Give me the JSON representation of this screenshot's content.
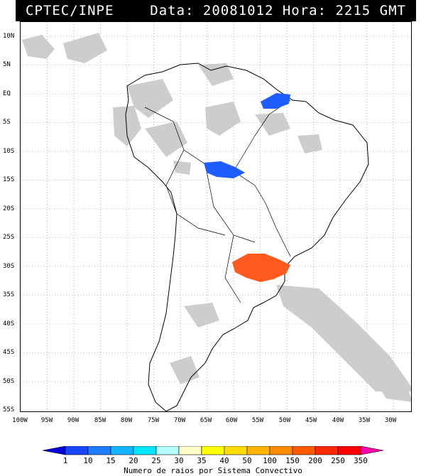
{
  "header": {
    "source": "CPTEC/INPE",
    "datetime": "Data: 20081012 Hora: 2215 GMT"
  },
  "map": {
    "lat_labels": [
      "10N",
      "5N",
      "EQ",
      "5S",
      "10S",
      "15S",
      "20S",
      "25S",
      "30S",
      "35S",
      "40S",
      "45S",
      "50S",
      "55S"
    ],
    "lon_labels": [
      "100W",
      "95W",
      "90W",
      "85W",
      "80W",
      "75W",
      "70W",
      "65W",
      "60W",
      "55W",
      "50W",
      "45W",
      "40W",
      "35W",
      "30W"
    ],
    "grid": "dotted",
    "cloud_color": "#c8c8c8",
    "storm_systems": [
      {
        "region": "northeast-brazil",
        "color": "#1e5cff"
      },
      {
        "region": "central-brazil",
        "color": "#1e5cff"
      },
      {
        "region": "southern-brazil-uruguay",
        "color": "#ff5a1e"
      }
    ]
  },
  "legend": {
    "values": [
      "1",
      "10",
      "15",
      "20",
      "25",
      "30",
      "35",
      "40",
      "50",
      "100",
      "150",
      "200",
      "250",
      "350"
    ],
    "colors": [
      "#0000d8",
      "#1846ff",
      "#1e7dff",
      "#12b4ff",
      "#00e6ff",
      "#b4ffff",
      "#ffffc8",
      "#ffff00",
      "#ffdc00",
      "#ffb400",
      "#ff8c00",
      "#ff5a00",
      "#ff2800",
      "#ff0000",
      "#ff00aa"
    ],
    "title": "Numero de raios por Sistema Convectivo"
  }
}
